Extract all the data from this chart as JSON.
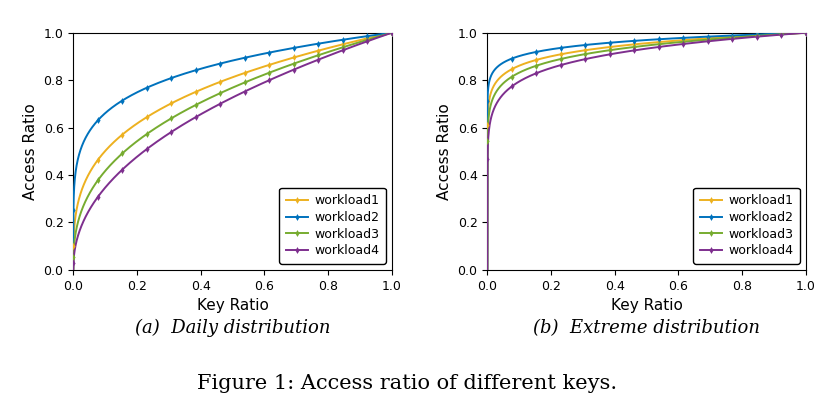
{
  "title": "Figure 1: Access ratio of different keys.",
  "subplot_a_title": "(a)  Daily distribution",
  "subplot_b_title": "(b)  Extreme distribution",
  "xlabel": "Key Ratio",
  "ylabel": "Access Ratio",
  "xlim": [
    0,
    1
  ],
  "ylim": [
    0,
    1
  ],
  "xticks": [
    0,
    0.2,
    0.4,
    0.6,
    0.8,
    1
  ],
  "yticks": [
    0,
    0.2,
    0.4,
    0.6,
    0.8,
    1
  ],
  "legend_labels": [
    "workload1",
    "workload2",
    "workload3",
    "workload4"
  ],
  "colors": [
    "#EDB120",
    "#0072BD",
    "#77AC30",
    "#7E2F8E"
  ],
  "daily_alphas": [
    0.3,
    0.18,
    0.38,
    0.46
  ],
  "extreme_alphas": [
    0.065,
    0.045,
    0.08,
    0.1
  ],
  "markersize": 3.5,
  "linewidth": 1.4,
  "n_markers": 14,
  "title_fontsize": 15,
  "subtitle_fontsize": 13,
  "axis_label_fontsize": 11,
  "tick_fontsize": 9,
  "legend_fontsize": 9
}
